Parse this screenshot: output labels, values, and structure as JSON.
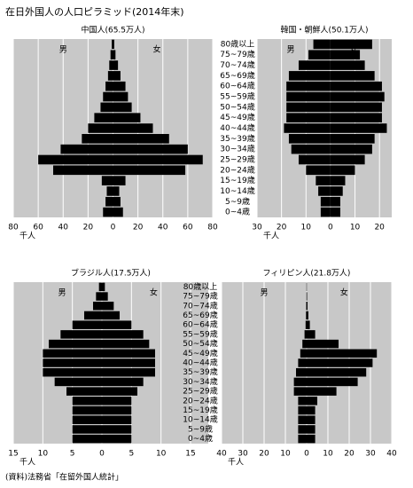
{
  "title": "在日外国人の人口ピラミッド(2014年末)",
  "source": "(資料)法務省「在留外国人統計」",
  "chart_data": [
    {
      "type": "bar",
      "title": "中国人(65.5万人)",
      "x_label": "千人",
      "categories": [
        null,
        null,
        null,
        null,
        null,
        null,
        null,
        null,
        null,
        null,
        null,
        null,
        null,
        null,
        null,
        null,
        null
      ],
      "series": [
        {
          "name": "男",
          "color": "#000000",
          "values": [
            -8,
            -6,
            -5,
            -9,
            -48,
            -60,
            -42,
            -25,
            -20,
            -15,
            -10,
            -8,
            -6,
            -4,
            -3,
            -2,
            -1
          ]
        },
        {
          "name": "女",
          "color": "#000000",
          "values": [
            8,
            6,
            5,
            10,
            58,
            72,
            60,
            45,
            32,
            22,
            15,
            12,
            10,
            6,
            4,
            2,
            1
          ]
        }
      ],
      "xlim": [
        -80,
        80
      ],
      "xticks": [
        {
          "value": -80,
          "label": "80"
        },
        {
          "value": -60,
          "label": "60"
        },
        {
          "value": -40,
          "label": "40"
        },
        {
          "value": -20,
          "label": "20"
        },
        0,
        20,
        40,
        60,
        80
      ],
      "grid": true
    },
    {
      "type": "bar",
      "title": "韓国・朝鮮人(50.1万人)",
      "x_label": "千人",
      "categories": [
        "0~4歳",
        "5~9歳",
        "10~14歳",
        "15~19歳",
        "20~24歳",
        "25~29歳",
        "30~34歳",
        "35~39歳",
        "40~44歳",
        "45~49歳",
        "50~54歳",
        "55~59歳",
        "60~64歳",
        "65~69歳",
        "70~74歳",
        "75~79歳",
        "80歳以上"
      ],
      "series": [
        {
          "name": "男",
          "color": "#000000",
          "values": [
            -4,
            -4,
            -5,
            -6,
            -10,
            -13,
            -16,
            -17,
            -19,
            -18,
            -18,
            -18,
            -18,
            -17,
            -13,
            -9,
            -7
          ]
        },
        {
          "name": "女",
          "color": "#000000",
          "values": [
            4,
            4,
            5,
            6,
            10,
            14,
            17,
            18,
            23,
            21,
            21,
            22,
            21,
            18,
            14,
            12,
            17
          ]
        }
      ],
      "xlim": [
        -30,
        25
      ],
      "xticks": [
        {
          "value": -30,
          "label": "30"
        },
        {
          "value": -20,
          "label": "20"
        },
        {
          "value": -10,
          "label": "10"
        },
        0,
        10,
        20
      ],
      "grid": true
    },
    {
      "type": "bar",
      "title": "ブラジル人(17.5万人)",
      "x_label": "千人",
      "categories": [
        null,
        null,
        null,
        null,
        null,
        null,
        null,
        null,
        null,
        null,
        null,
        null,
        null,
        null,
        null,
        null,
        null
      ],
      "series": [
        {
          "name": "男",
          "color": "#000000",
          "values": [
            -5,
            -5,
            -5,
            -5,
            -5,
            -6,
            -8,
            -10,
            -10,
            -10,
            -9,
            -7,
            -5,
            -3,
            -1.5,
            -1,
            -0.5
          ]
        },
        {
          "name": "女",
          "color": "#000000",
          "values": [
            5,
            5,
            5,
            5,
            5,
            6,
            7,
            9,
            9,
            9,
            8,
            7,
            5,
            3,
            2,
            1,
            0.5
          ]
        }
      ],
      "xlim": [
        -15,
        18
      ],
      "xticks": [
        {
          "value": -15,
          "label": "15"
        },
        {
          "value": -10,
          "label": "10"
        },
        {
          "value": -5,
          "label": "5"
        },
        0,
        5,
        10,
        15
      ],
      "grid": true
    },
    {
      "type": "bar",
      "title": "フィリピン人(21.8万人)",
      "x_label": "千人",
      "categories": [
        "0~4歳",
        "5~9歳",
        "10~14歳",
        "15~19歳",
        "20~24歳",
        "25~29歳",
        "30~34歳",
        "35~39歳",
        "40~44歳",
        "45~49歳",
        "50~54歳",
        "55~59歳",
        "60~64歳",
        "65~69歳",
        "70~74歳",
        "75~79歳",
        "80歳以上"
      ],
      "series": [
        {
          "name": "男",
          "color": "#000000",
          "values": [
            -4,
            -4,
            -4,
            -4,
            -4,
            -6,
            -6,
            -5,
            -4,
            -3,
            -2,
            -1,
            -0.5,
            -0.3,
            -0.2,
            -0.1,
            -0.1
          ]
        },
        {
          "name": "女",
          "color": "#000000",
          "values": [
            4,
            4,
            4,
            4,
            5,
            14,
            24,
            28,
            31,
            33,
            15,
            4,
            1.5,
            0.8,
            0.4,
            0.2,
            0.1
          ]
        }
      ],
      "xlim": [
        -40,
        40
      ],
      "xticks": [
        {
          "value": -40,
          "label": "40"
        },
        {
          "value": -30,
          "label": "30"
        },
        {
          "value": -20,
          "label": "20"
        },
        {
          "value": -10,
          "label": "10"
        },
        0,
        10,
        20,
        30,
        40
      ],
      "grid": true
    }
  ]
}
